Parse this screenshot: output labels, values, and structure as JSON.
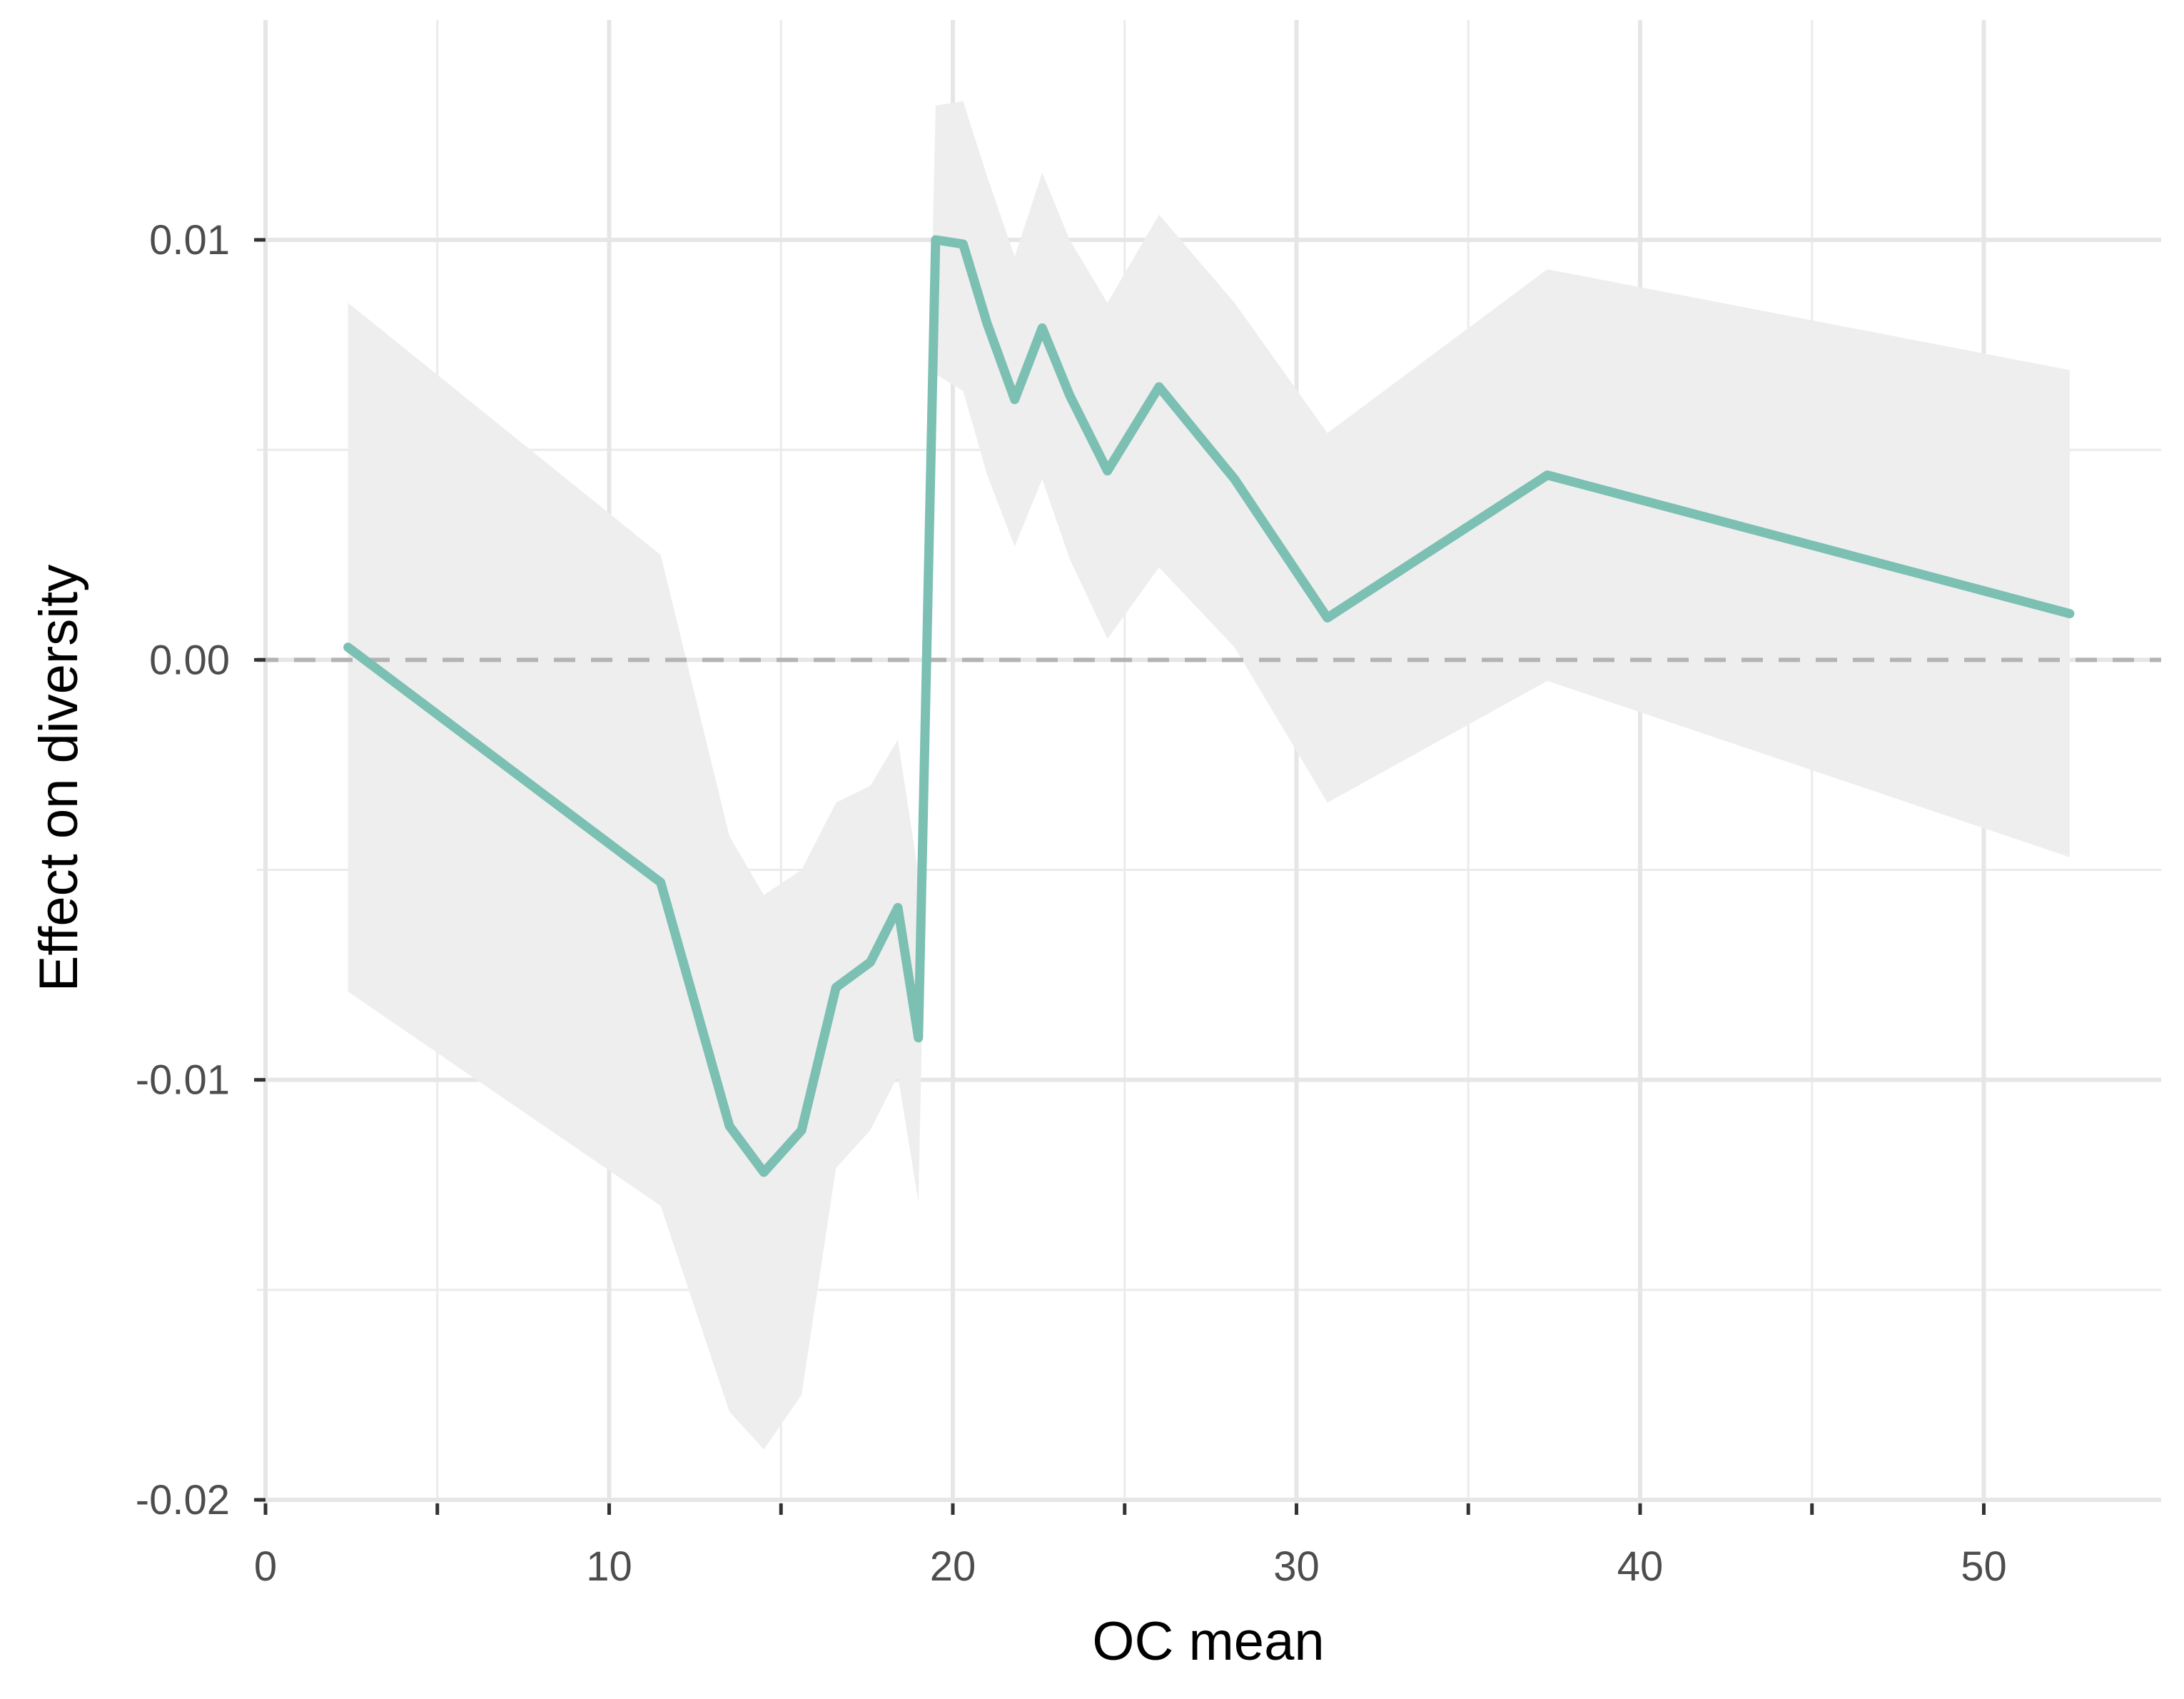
{
  "chart_data": {
    "type": "line",
    "title": "",
    "xlabel": "OC mean",
    "ylabel": "Effect on diversity",
    "xlim": [
      0,
      55
    ],
    "ylim": [
      -0.02,
      0.0145
    ],
    "x_ticks": [
      0,
      10,
      20,
      30,
      40,
      50
    ],
    "x_tick_labels": [
      "0",
      "10",
      "20",
      "30",
      "40",
      "50"
    ],
    "x_minor_ticks": [
      5,
      15,
      25,
      35,
      45
    ],
    "y_ticks": [
      -0.02,
      -0.01,
      0.0,
      0.01
    ],
    "y_tick_labels": [
      "-0.02",
      "-0.01",
      "0.00",
      "0.01"
    ],
    "y_minor_ticks": [
      -0.015,
      -0.005,
      0.005
    ],
    "grid": true,
    "reference_line": {
      "y": 0.0,
      "style": "dashed",
      "color": "#b3b3b3"
    },
    "line_color": "#7bc0b3",
    "ribbon_color": "#eeeeee",
    "series": [
      {
        "x": [
          2.4,
          11.5,
          13.5,
          14.5,
          15.6,
          16.6,
          17.6,
          18.4,
          19.0,
          19.5,
          20.3,
          21.0,
          21.8,
          22.6,
          23.4,
          24.5,
          26.0,
          28.2,
          30.9,
          37.3,
          52.5
        ],
        "y": [
          0.0003,
          -0.0053,
          -0.0111,
          -0.0122,
          -0.0112,
          -0.0078,
          -0.0072,
          -0.0059,
          -0.009,
          0.01,
          0.0099,
          0.008,
          0.0062,
          0.0079,
          0.0063,
          0.0045,
          0.0065,
          0.0043,
          0.001,
          0.0044,
          0.0011
        ],
        "lower": [
          -0.0079,
          -0.013,
          -0.0179,
          -0.0188,
          -0.0175,
          -0.0121,
          -0.0112,
          -0.0099,
          -0.0129,
          0.0068,
          0.0064,
          0.0044,
          0.0027,
          0.0043,
          0.0024,
          0.0005,
          0.0022,
          0.0003,
          -0.0034,
          -0.0005,
          -0.0047
        ],
        "upper": [
          0.0085,
          0.0025,
          -0.0042,
          -0.0056,
          -0.005,
          -0.0034,
          -0.003,
          -0.0019,
          -0.0051,
          0.0132,
          0.0133,
          0.0115,
          0.0096,
          0.0116,
          0.01,
          0.0085,
          0.0106,
          0.0085,
          0.0054,
          0.0093,
          0.0069
        ]
      }
    ]
  }
}
